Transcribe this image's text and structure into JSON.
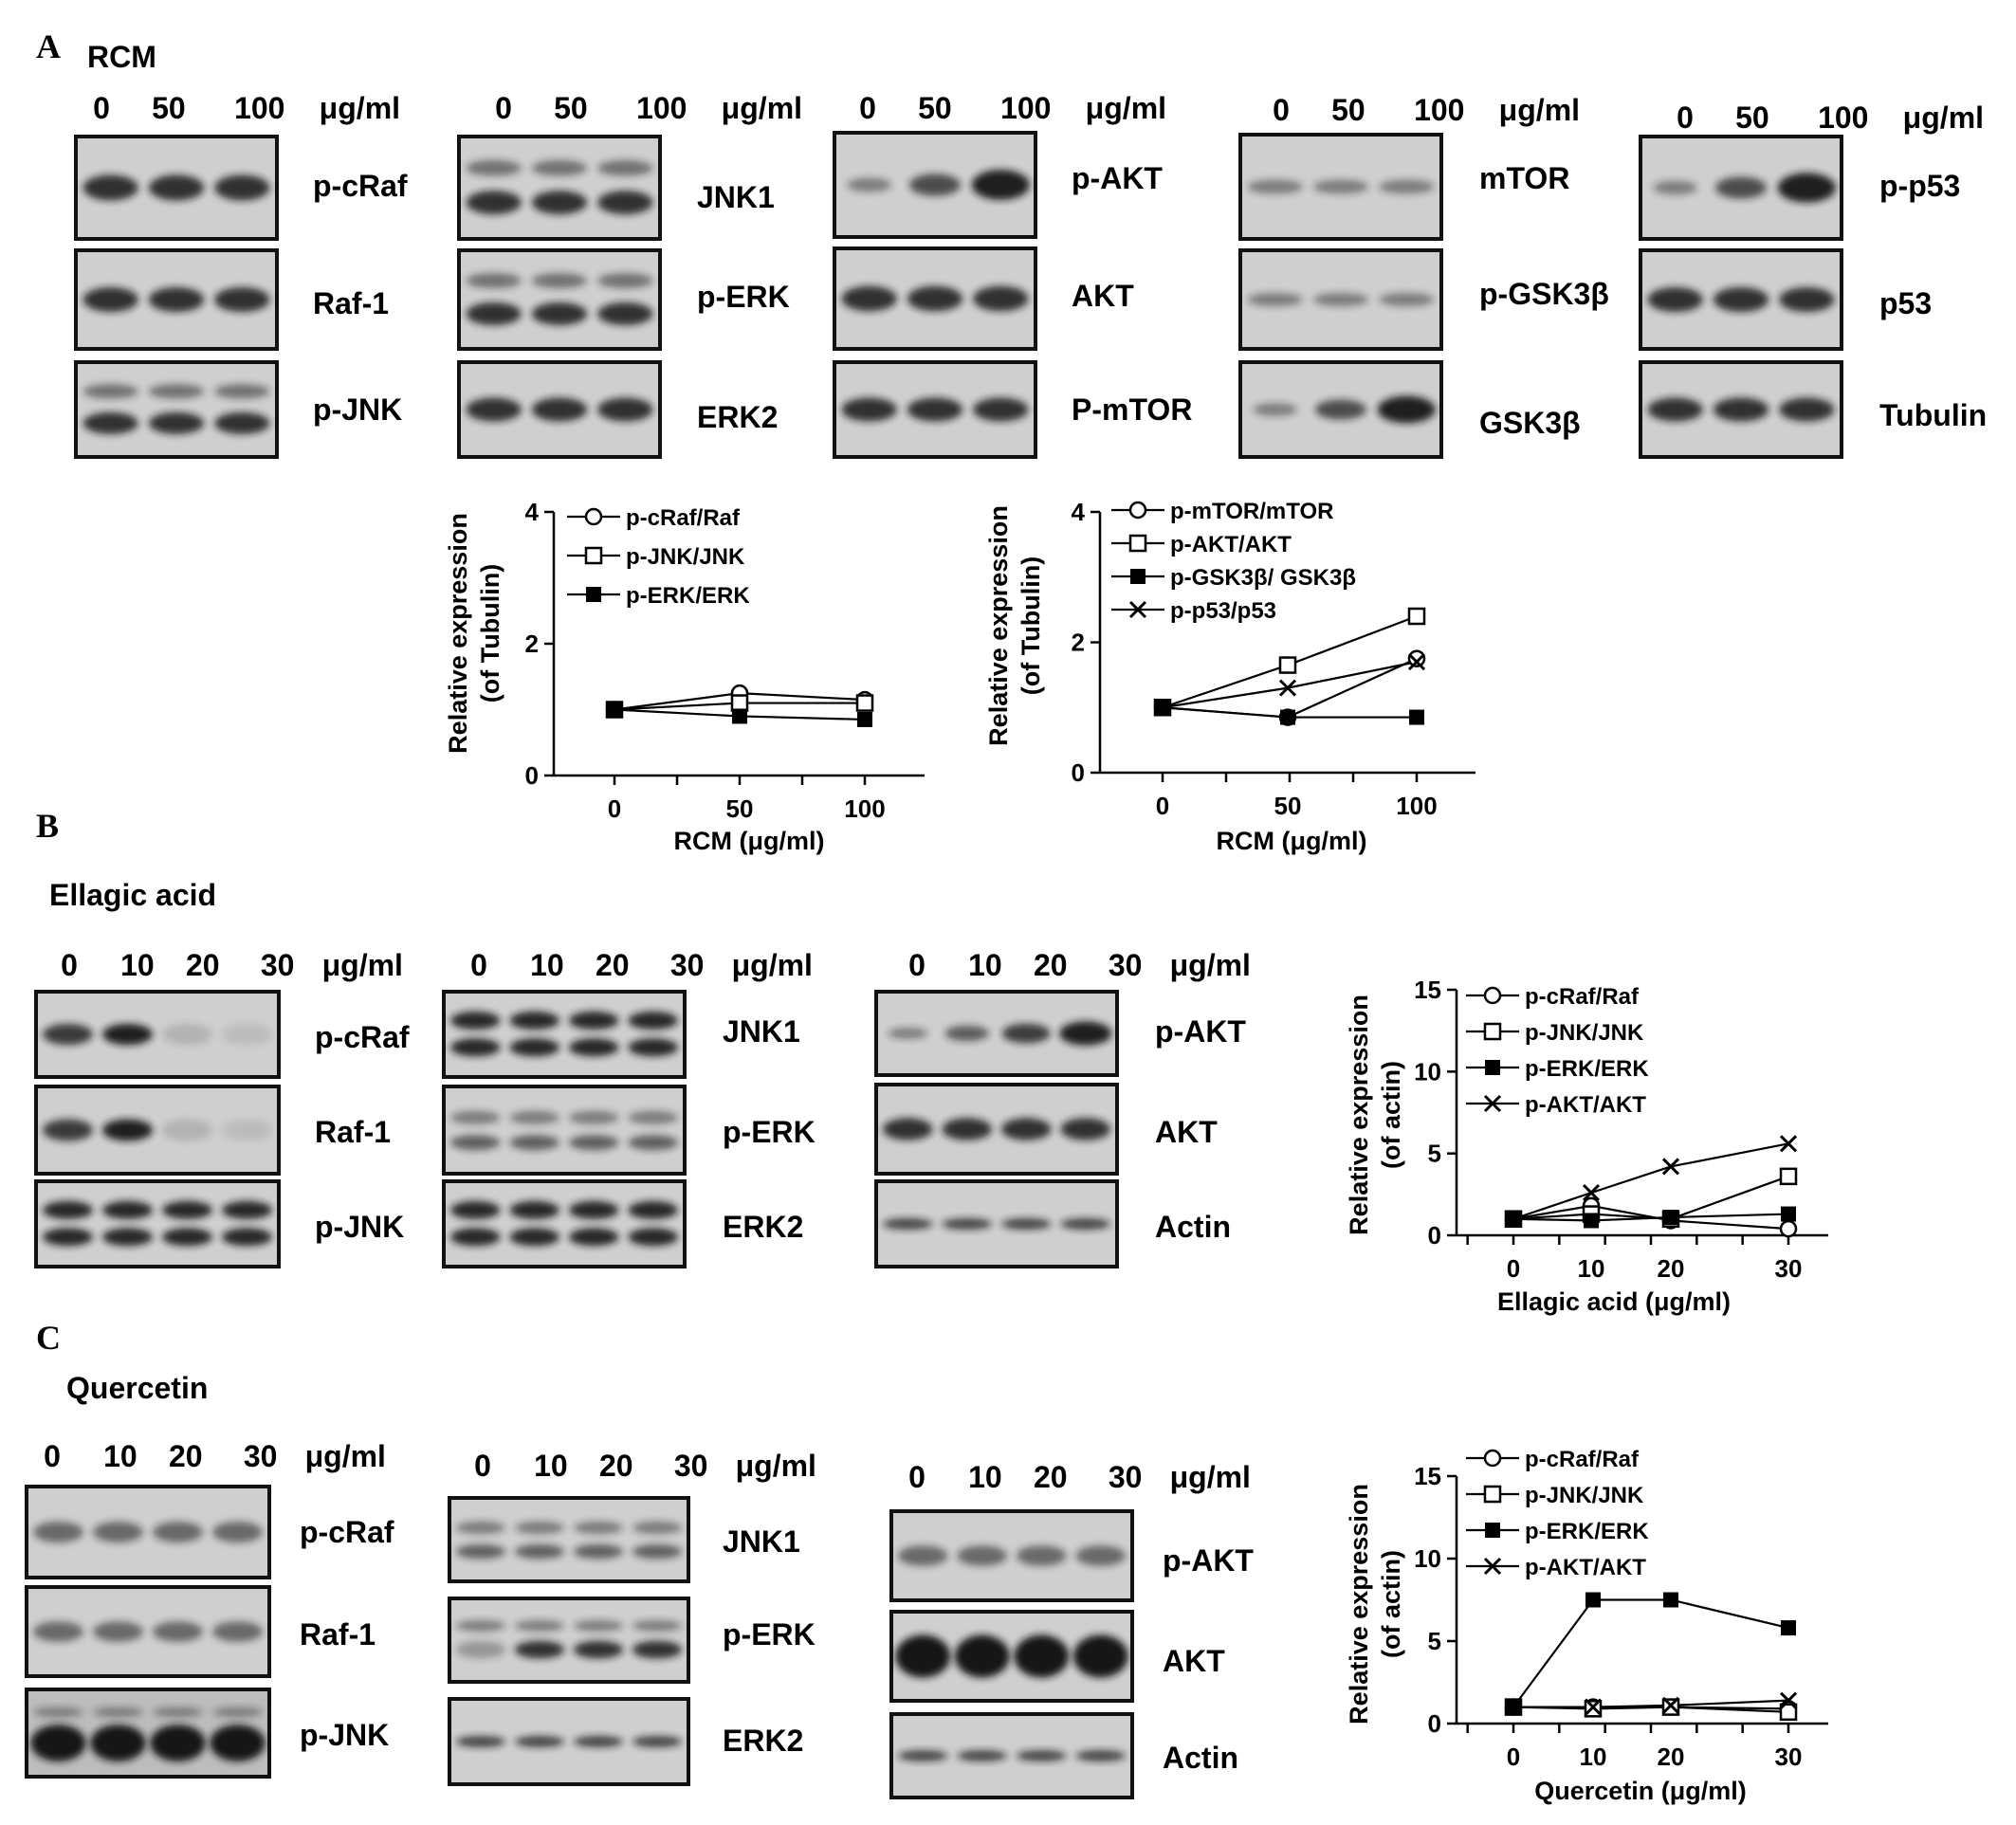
{
  "panels": {
    "A": {
      "letter": "A",
      "treatment": "RCM",
      "unit": "μg/ml",
      "doses": [
        "0",
        "50",
        "100"
      ],
      "columns": [
        {
          "labels": [
            "p-cRaf",
            "Raf-1",
            "p-JNK"
          ]
        },
        {
          "labels": [
            "JNK1",
            "p-ERK",
            "ERK2"
          ]
        },
        {
          "labels": [
            "p-AKT",
            "AKT",
            "P-mTOR"
          ]
        },
        {
          "labels": [
            "mTOR",
            "p-GSK3β",
            "GSK3β"
          ]
        },
        {
          "labels": [
            "p-p53",
            "p53",
            "Tubulin"
          ]
        }
      ]
    },
    "B": {
      "letter": "B",
      "treatment": "Ellagic acid",
      "unit": "μg/ml",
      "doses": [
        "0",
        "10",
        "20",
        "30"
      ],
      "columns": [
        {
          "labels": [
            "p-cRaf",
            "Raf-1",
            "p-JNK"
          ]
        },
        {
          "labels": [
            "JNK1",
            "p-ERK",
            "ERK2"
          ]
        },
        {
          "labels": [
            "p-AKT",
            "AKT",
            "Actin"
          ]
        }
      ]
    },
    "C": {
      "letter": "C",
      "treatment": "Quercetin",
      "unit": "μg/ml",
      "doses": [
        "0",
        "10",
        "20",
        "30"
      ],
      "columns": [
        {
          "labels": [
            "p-cRaf",
            "Raf-1",
            "p-JNK"
          ]
        },
        {
          "labels": [
            "JNK1",
            "p-ERK",
            "ERK2"
          ]
        },
        {
          "labels": [
            "p-AKT",
            "AKT",
            "Actin"
          ]
        }
      ]
    }
  },
  "chart_data": [
    {
      "type": "line",
      "ylabel": [
        "Relative expression",
        "(of Tubulin)"
      ],
      "xlabel": "RCM (μg/ml)",
      "categories": [
        "0",
        "50",
        "100"
      ],
      "ylim": [
        0,
        4
      ],
      "yticks": [
        0,
        2,
        4
      ],
      "legend": "top-left",
      "series": [
        {
          "name": "p-cRaf/Raf",
          "marker": "open-circle",
          "values": [
            1.0,
            1.25,
            1.15
          ]
        },
        {
          "name": "p-JNK/JNK",
          "marker": "open-square",
          "values": [
            1.0,
            1.1,
            1.1
          ]
        },
        {
          "name": "p-ERK/ERK",
          "marker": "filled-square",
          "values": [
            1.0,
            0.9,
            0.85
          ]
        }
      ]
    },
    {
      "type": "line",
      "ylabel": [
        "Relative expression",
        "(of Tubulin)"
      ],
      "xlabel": "RCM (μg/ml)",
      "categories": [
        "0",
        "50",
        "100"
      ],
      "ylim": [
        0,
        4
      ],
      "yticks": [
        0,
        2,
        4
      ],
      "legend": "top-left",
      "series": [
        {
          "name": "p-mTOR/mTOR",
          "marker": "open-circle",
          "values": [
            1.0,
            0.85,
            1.75
          ]
        },
        {
          "name": "p-AKT/AKT",
          "marker": "open-square",
          "values": [
            1.0,
            1.65,
            2.4
          ]
        },
        {
          "name": "p-GSK3β/ GSK3β",
          "marker": "filled-square",
          "values": [
            1.0,
            0.85,
            0.85
          ]
        },
        {
          "name": "p-p53/p53",
          "marker": "cross",
          "values": [
            1.0,
            1.3,
            1.7
          ]
        }
      ]
    },
    {
      "type": "line",
      "ylabel": [
        "Relative expression",
        "(of actin)"
      ],
      "xlabel": "Ellagic acid  (μg/ml)",
      "categories": [
        "0",
        "10",
        "20",
        "30"
      ],
      "ylim": [
        0,
        15
      ],
      "yticks": [
        0,
        5,
        10,
        15
      ],
      "legend": "top-left",
      "series": [
        {
          "name": "p-cRaf/Raf",
          "marker": "open-circle",
          "values": [
            1.0,
            1.8,
            0.9,
            0.4
          ]
        },
        {
          "name": "p-JNK/JNK",
          "marker": "open-square",
          "values": [
            1.0,
            1.3,
            1.0,
            3.6
          ]
        },
        {
          "name": "p-ERK/ERK",
          "marker": "filled-square",
          "values": [
            1.0,
            0.9,
            1.1,
            1.3
          ]
        },
        {
          "name": "p-AKT/AKT",
          "marker": "cross",
          "values": [
            1.0,
            2.6,
            4.2,
            5.6
          ]
        }
      ]
    },
    {
      "type": "line",
      "ylabel": [
        "Relative expression",
        "(of actin)"
      ],
      "xlabel": "Quercetin (μg/ml)",
      "categories": [
        "0",
        "10",
        "20",
        "30"
      ],
      "ylim": [
        0,
        15
      ],
      "yticks": [
        0,
        5,
        10,
        15
      ],
      "legend": "top-left",
      "series": [
        {
          "name": "p-cRaf/Raf",
          "marker": "open-circle",
          "values": [
            1.0,
            1.0,
            1.0,
            0.9
          ]
        },
        {
          "name": "p-JNK/JNK",
          "marker": "open-square",
          "values": [
            1.0,
            0.9,
            1.0,
            0.7
          ]
        },
        {
          "name": "p-ERK/ERK",
          "marker": "filled-square",
          "values": [
            1.0,
            7.5,
            7.5,
            5.8
          ]
        },
        {
          "name": "p-AKT/AKT",
          "marker": "cross",
          "values": [
            1.0,
            1.0,
            1.1,
            1.4
          ]
        }
      ]
    }
  ]
}
